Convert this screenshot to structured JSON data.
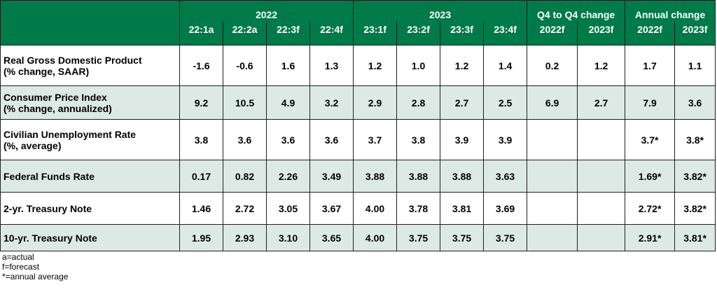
{
  "colors": {
    "header_bg": "#007a48",
    "header_text": "#ffffff",
    "alt_row_bg": "#dde9e5",
    "row_bg": "#ffffff"
  },
  "chart_data": {
    "type": "table",
    "column_groups": [
      {
        "label": "2022",
        "columns": [
          "22:1a",
          "22:2a",
          "22:3f",
          "22:4f"
        ]
      },
      {
        "label": "2023",
        "columns": [
          "23:1f",
          "23:2f",
          "23:3f",
          "23:4f"
        ]
      },
      {
        "label": "Q4 to Q4 change",
        "columns": [
          "2022f",
          "2023f"
        ]
      },
      {
        "label": "Annual change",
        "columns": [
          "2022f",
          "2023f"
        ]
      }
    ],
    "rows": [
      {
        "label_line1": "Real Gross Domestic Product",
        "label_line2": "(% change, SAAR)",
        "values": [
          "-1.6",
          "-0.6",
          "1.6",
          "1.3",
          "1.2",
          "1.0",
          "1.2",
          "1.4",
          "0.2",
          "1.2",
          "1.7",
          "1.1"
        ]
      },
      {
        "label_line1": "Consumer Price Index",
        "label_line2": "(% change, annualized)",
        "values": [
          "9.2",
          "10.5",
          "4.9",
          "3.2",
          "2.9",
          "2.8",
          "2.7",
          "2.5",
          "6.9",
          "2.7",
          "7.9",
          "3.6"
        ]
      },
      {
        "label_line1": "Civilian Unemployment Rate",
        "label_line2": "(%, average)",
        "values": [
          "3.8",
          "3.6",
          "3.6",
          "3.6",
          "3.7",
          "3.8",
          "3.9",
          "3.9",
          "",
          "",
          "3.7*",
          "3.8*"
        ]
      },
      {
        "label_line1": "Federal Funds Rate",
        "label_line2": "",
        "values": [
          "0.17",
          "0.82",
          "2.26",
          "3.49",
          "3.88",
          "3.88",
          "3.88",
          "3.63",
          "",
          "",
          "1.69*",
          "3.82*"
        ]
      },
      {
        "label_line1": "2-yr. Treasury Note",
        "label_line2": "",
        "values": [
          "1.46",
          "2.72",
          "3.05",
          "3.67",
          "4.00",
          "3.78",
          "3.81",
          "3.69",
          "",
          "",
          "2.72*",
          "3.82*"
        ]
      },
      {
        "label_line1": "10-yr. Treasury Note",
        "label_line2": "",
        "values": [
          "1.95",
          "2.93",
          "3.10",
          "3.65",
          "4.00",
          "3.75",
          "3.75",
          "3.75",
          "",
          "",
          "2.91*",
          "3.81*"
        ]
      }
    ],
    "footnotes": [
      "a=actual",
      "f=forecast",
      "*=annual average"
    ]
  }
}
